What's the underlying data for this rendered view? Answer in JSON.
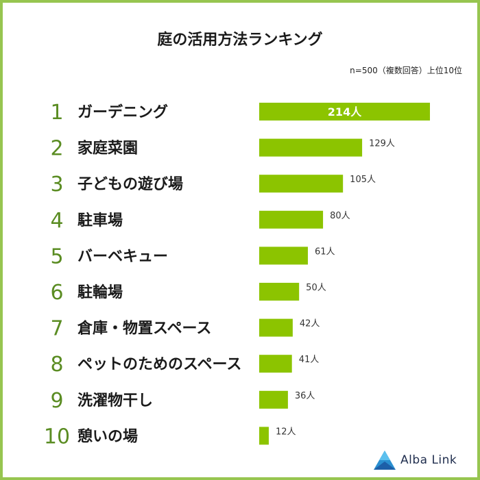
{
  "title": "庭の活用方法ランキング",
  "note": "n=500（複数回答）上位10位",
  "brand": {
    "name": "Alba Link"
  },
  "colors": {
    "bar": "#8cc400",
    "border": "#97c550",
    "rank": "#5a8c22"
  },
  "chart_data": {
    "type": "bar",
    "orientation": "horizontal",
    "title": "庭の活用方法ランキング",
    "categories": [
      "ガーデニング",
      "家庭菜園",
      "子どもの遊び場",
      "駐車場",
      "バーベキュー",
      "駐輪場",
      "倉庫・物置スペース",
      "ペットのためのスペース",
      "洗濯物干し",
      "憩いの場"
    ],
    "ranks": [
      "1",
      "2",
      "3",
      "4",
      "5",
      "6",
      "7",
      "8",
      "9",
      "10"
    ],
    "values": [
      214,
      129,
      105,
      80,
      61,
      50,
      42,
      41,
      36,
      12
    ],
    "value_labels": [
      "214人",
      "129人",
      "105人",
      "80人",
      "61人",
      "50人",
      "42人",
      "41人",
      "36人",
      "12人"
    ],
    "xlim": [
      0,
      214
    ],
    "unit": "人"
  }
}
